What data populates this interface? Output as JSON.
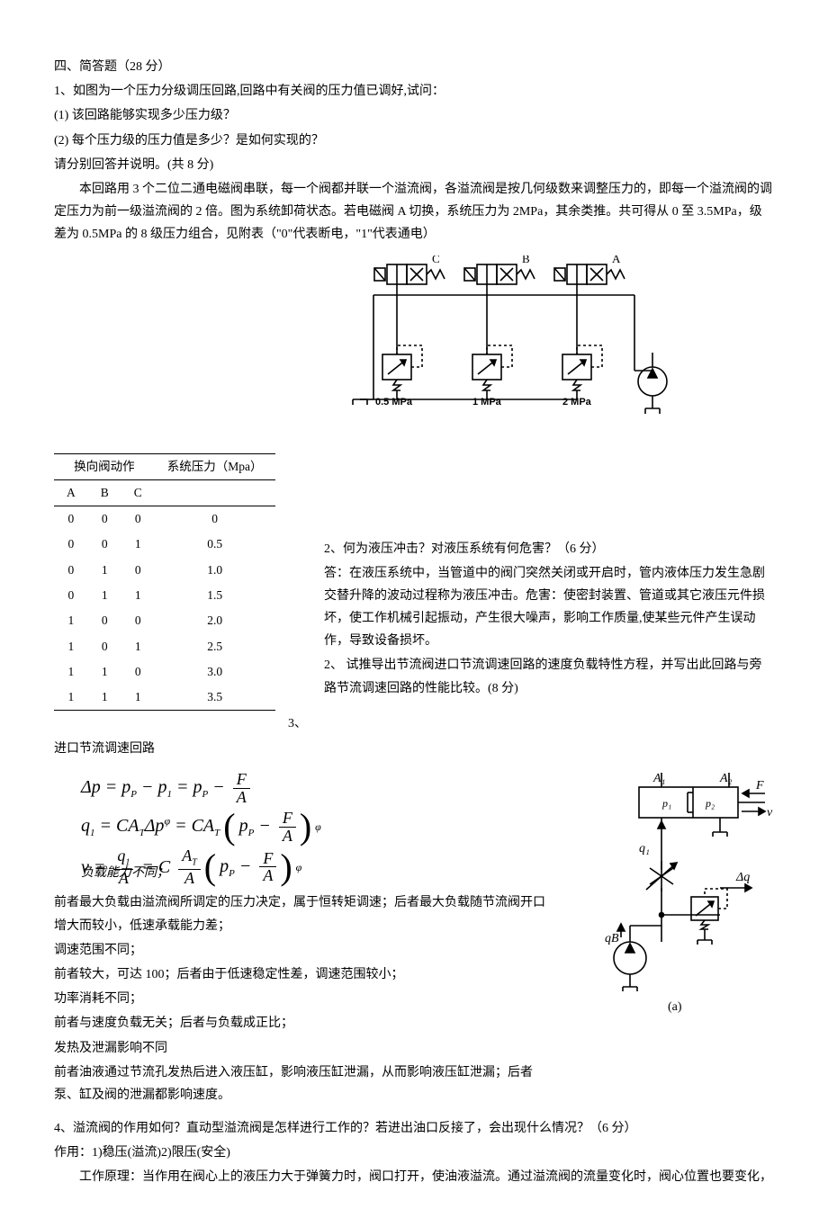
{
  "header": {
    "section_title": "四、简答题（28 分）"
  },
  "q1": {
    "prompt": "1、如图为一个压力分级调压回路,回路中有关阀的压力值已调好,试问：",
    "sub1": "(1) 该回路能够实现多少压力级？",
    "sub2": "(2) 每个压力级的压力值是多少？是如何实现的？",
    "note": "请分别回答并说明。(共 8 分)",
    "ans_p1": "本回路用 3 个二位二通电磁阀串联，每一个阀都并联一个溢流阀，各溢流阀是按几何级数来调整压力的，即每一个溢流阀的调定压力为前一级溢流阀的 2 倍。图为系统卸荷状态。若电磁阀 A 切换，系统压力为 2MPa，其余类推。共可得从 0 至 3.5MPa，级差为 0.5MPa 的 8 级压力组合，见附表（\"0\"代表断电，\"1\"代表通电）",
    "table": {
      "head_group": "换向阀动作",
      "head_pressure": "系统压力（Mpa）",
      "cols": [
        "A",
        "B",
        "C"
      ],
      "rows": [
        [
          "0",
          "0",
          "0",
          "0"
        ],
        [
          "0",
          "0",
          "1",
          "0.5"
        ],
        [
          "0",
          "1",
          "0",
          "1.0"
        ],
        [
          "0",
          "1",
          "1",
          "1.5"
        ],
        [
          "1",
          "0",
          "0",
          "2.0"
        ],
        [
          "1",
          "0",
          "1",
          "2.5"
        ],
        [
          "1",
          "1",
          "0",
          "3.0"
        ],
        [
          "1",
          "1",
          "1",
          "3.5"
        ]
      ]
    },
    "circuit": {
      "valve_labels": [
        "C",
        "B",
        "A"
      ],
      "relief_labels": [
        "0.5 MPa",
        "1 MPa",
        "2 MPa"
      ],
      "stroke": "#000000",
      "fill": "#ffffff"
    }
  },
  "q2": {
    "prompt": "2、何为液压冲击？对液压系统有何危害？（6 分）",
    "answer": "答：在液压系统中，当管道中的阀门突然关闭或开启时，管内液体压力发生急剧交替升降的波动过程称为液压冲击。危害：使密封装置、管道或其它液压元件损坏，使工作机械引起振动，产生很大噪声，影响工作质量,使某些元件产生误动作，导致设备损坏。"
  },
  "q3": {
    "prompt": "2、 试推导出节流阀进口节流调速回路的速度负载特性方程，并写出此回路与旁路节流调速回路的性能比较。(8 分)",
    "lead": "3、",
    "title": "进口节流调速回路",
    "equations": {
      "eq1_lhs": "Δp = p",
      "eq1_sub1": "P",
      "eq1_mid": " − p",
      "eq1_sub2": "1",
      "eq1_eq": " = p",
      "eq1_sub3": "P",
      "eq1_minus": " − ",
      "eq1_frac_num": "F",
      "eq1_frac_den": "A",
      "eq2_q": "q",
      "eq2_qsub": "1",
      "eq2_eq": " = CA",
      "eq2_Tsub": "T",
      "eq2_dp": "Δp",
      "eq2_phi": "φ",
      "eq2_eq2": " = CA",
      "eq2_pP": "p",
      "eq2_Psub": "P",
      "eq3_v": "v = ",
      "eq3_q1num": "q",
      "eq3_q1sub": "1",
      "eq3_A": "A",
      "eq3_C": " = C ",
      "eq3_ATnum": "A",
      "eq3_ATsub": "T"
    },
    "overlap_label": "负载能力不同；",
    "cmp": [
      "前者最大负载由溢流阀所调定的压力决定，属于恒转矩调速；后者最大负载随节流阀开口增大而较小，低速承载能力差；",
      "调速范围不同；",
      "前者较大，可达 100；后者由于低速稳定性差，调速范围较小；",
      "功率消耗不同；",
      "前者与速度负载无关；后者与负载成正比；",
      "发热及泄漏影响不同",
      "前者油液通过节流孔发热后进入液压缸，影响液压缸泄漏，从而影响液压缸泄漏；后者泵、缸及阀的泄漏都影响速度。"
    ],
    "diagram": {
      "labels": {
        "A1": "A₁",
        "A2": "A₂",
        "F": "F",
        "v": "v",
        "p1": "p₁",
        "p2": "p₂",
        "q1": "q₁",
        "dq": "Δq",
        "qB": "qB",
        "caption": "(a)"
      },
      "stroke": "#000000"
    }
  },
  "q4": {
    "prompt": "4、溢流阀的作用如何？直动型溢流阀是怎样进行工作的？若进出油口反接了，会出现什么情况？（6 分）",
    "ans1": "作用：1)稳压(溢流)2)限压(安全)",
    "ans2": "工作原理：当作用在阀心上的液压力大于弹簧力时，阀口打开，使油液溢流。通过溢流阀的流量变化时，阀心位置也要变化，"
  }
}
